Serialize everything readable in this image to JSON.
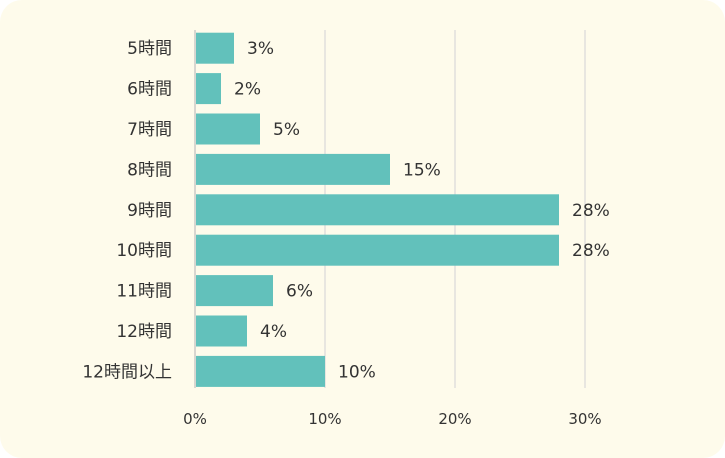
{
  "chart_data": {
    "type": "bar",
    "orientation": "horizontal",
    "categories": [
      "5時間",
      "6時間",
      "7時間",
      "8時間",
      "9時間",
      "10時間",
      "11時間",
      "12時間",
      "12時間以上"
    ],
    "values": [
      3,
      2,
      5,
      15,
      28,
      28,
      6,
      4,
      10
    ],
    "value_labels": [
      "3%",
      "2%",
      "5%",
      "15%",
      "28%",
      "28%",
      "6%",
      "4%",
      "10%"
    ],
    "xticks": [
      0,
      10,
      20,
      30
    ],
    "xtick_labels": [
      "0%",
      "10%",
      "20%",
      "30%"
    ],
    "xlim": [
      0,
      30
    ],
    "grid": true,
    "colors": {
      "bar": "#62c1bb",
      "grid": "#d9d9d9",
      "background": "#fefbeb"
    }
  }
}
